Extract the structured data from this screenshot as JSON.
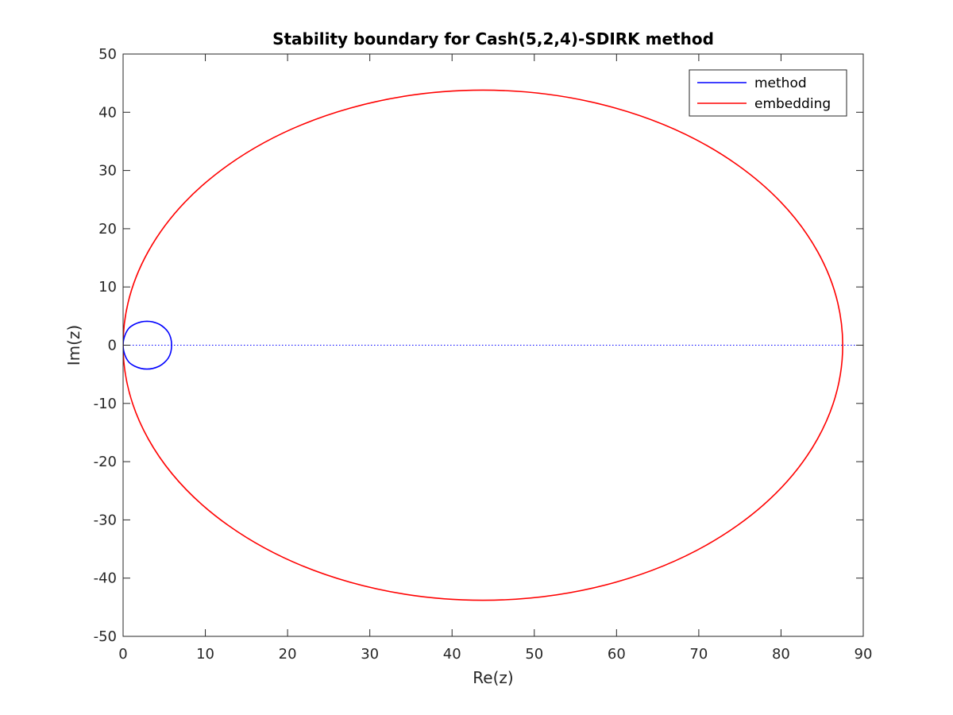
{
  "chart_data": {
    "type": "line",
    "title": "Stability boundary for Cash(5,2,4)-SDIRK method",
    "xlabel": "Re(z)",
    "ylabel": "Im(z)",
    "xlim": [
      0,
      90
    ],
    "ylim": [
      -50,
      50
    ],
    "xticks": [
      0,
      10,
      20,
      30,
      40,
      50,
      60,
      70,
      80,
      90
    ],
    "yticks": [
      -50,
      -40,
      -30,
      -20,
      -10,
      0,
      10,
      20,
      30,
      40,
      50
    ],
    "xtick_labels": [
      "0",
      "10",
      "20",
      "30",
      "40",
      "50",
      "60",
      "70",
      "80",
      "90"
    ],
    "ytick_labels": [
      "-50",
      "-40",
      "-30",
      "-20",
      "-10",
      "0",
      "10",
      "20",
      "30",
      "40",
      "50"
    ],
    "grid": false,
    "legend": {
      "position": "top-right"
    },
    "series": [
      {
        "name": "method",
        "color": "#0000ff",
        "shape": "closed-curve",
        "x": [
          0.0,
          0.2,
          0.7,
          1.4,
          2.2,
          2.9,
          3.6,
          4.4,
          5.0,
          5.5,
          5.8,
          5.9,
          5.8,
          5.5,
          5.0,
          4.4,
          3.6,
          2.9,
          2.2,
          1.4,
          0.7,
          0.2,
          0.0
        ],
        "y": [
          0.0,
          1.6,
          2.9,
          3.6,
          4.0,
          4.1,
          4.0,
          3.6,
          3.0,
          2.2,
          1.2,
          0.0,
          -1.2,
          -2.2,
          -3.0,
          -3.6,
          -4.0,
          -4.1,
          -4.0,
          -3.6,
          -2.9,
          -1.6,
          0.0
        ]
      },
      {
        "name": "embedding",
        "color": "#ff0000",
        "shape": "closed-curve",
        "center": [
          43.75,
          0
        ],
        "x_semi_axis": 43.75,
        "y_semi_axis": 43.8
      }
    ],
    "reference_line": {
      "axis": "y",
      "value": 0,
      "style": "dotted",
      "color": "#0000ff",
      "x_range": [
        0,
        90
      ]
    }
  }
}
